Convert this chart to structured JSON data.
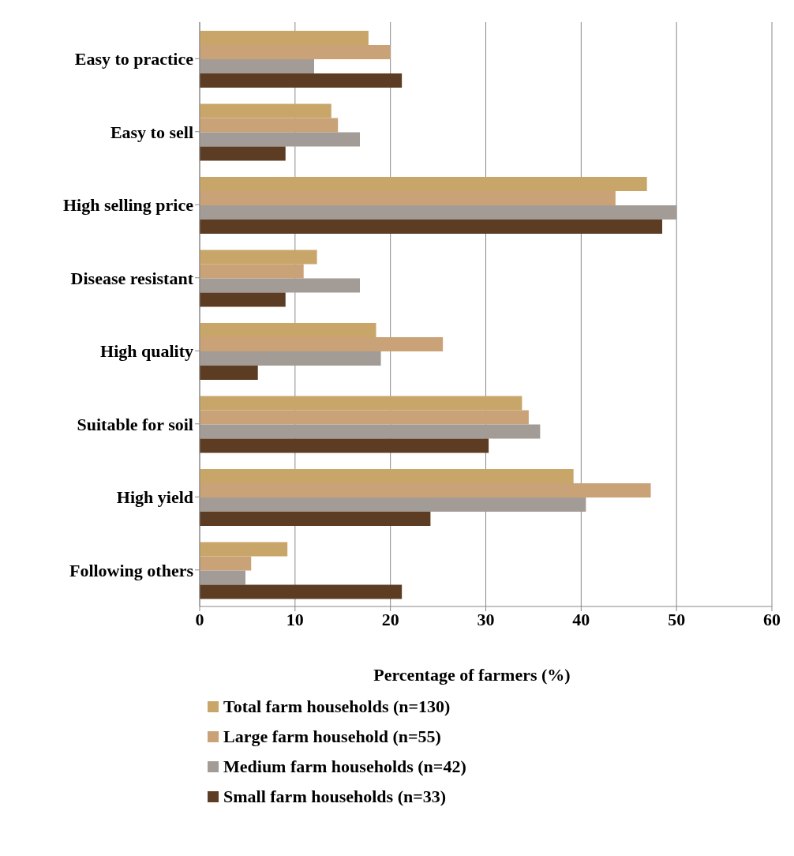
{
  "chart_data": {
    "type": "bar",
    "orientation": "horizontal",
    "xlabel": "Percentage  of farmers (%)",
    "categories": [
      "Easy to practice",
      "Easy to sell",
      "High selling price",
      "Disease resistant",
      "High quality",
      "Suitable for soil",
      "High yield",
      "Following others"
    ],
    "series": [
      {
        "name": "Total farm households (n=130)",
        "color": "#c8a66a",
        "values": [
          17.7,
          13.8,
          46.9,
          12.3,
          18.5,
          33.8,
          39.2,
          9.2
        ]
      },
      {
        "name": "Large farm household (n=55)",
        "color": "#c9a277",
        "values": [
          20,
          14.5,
          43.6,
          10.9,
          25.5,
          34.5,
          47.3,
          5.4
        ]
      },
      {
        "name": "Medium farm households (n=42)",
        "color": "#a39c96",
        "values": [
          12,
          16.8,
          50,
          16.8,
          19,
          35.7,
          40.5,
          4.8
        ]
      },
      {
        "name": "Small farm households (n=33)",
        "color": "#5c3c22",
        "values": [
          21.2,
          9,
          48.5,
          9,
          6.1,
          30.3,
          24.2,
          21.2
        ]
      }
    ],
    "xlim": [
      0,
      60
    ],
    "xticks": [
      0,
      10,
      20,
      30,
      40,
      50,
      60
    ],
    "grid": "x",
    "legend": "bottom"
  }
}
